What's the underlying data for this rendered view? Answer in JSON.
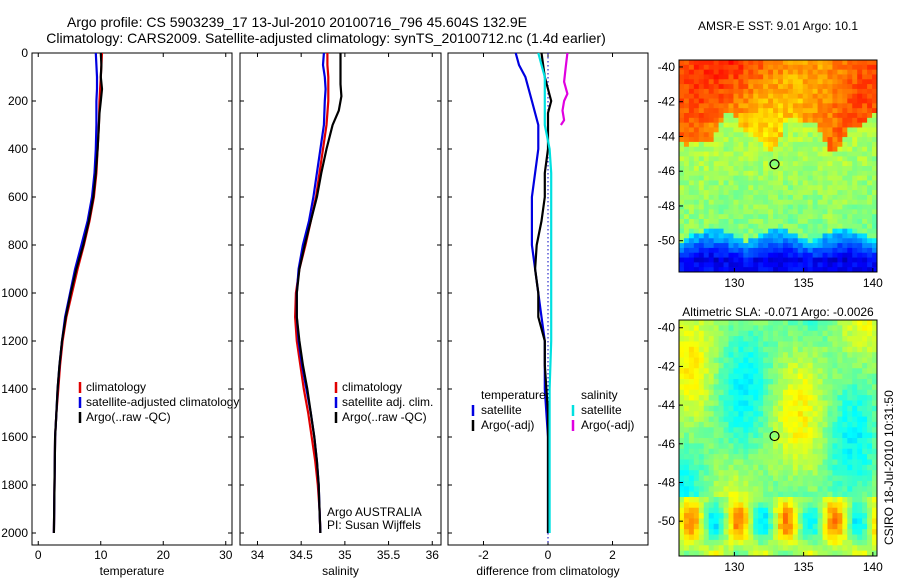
{
  "title": {
    "line1": "Argo profile: CS 5903239_17 13-Jul-2010 20100716_796 45.604S 132.9E",
    "line2": "Climatology: CARS2009. Satellite-adjusted climatology: synTS_20100712.nc (1.4d earlier)"
  },
  "side_label": "CSIRO 18-Jul-2010 10:31:50",
  "colors": {
    "red": "#e00000",
    "blue": "#0000e0",
    "black": "#000000",
    "cyan": "#00e0e0",
    "magenta": "#e000e0",
    "dotted": "#0000c0"
  },
  "chart_data": [
    {
      "type": "line",
      "id": "temperature",
      "xlabel": "temperature",
      "xlim": [
        -1,
        31
      ],
      "ylim": [
        2050,
        0
      ],
      "xticks": [
        0,
        10,
        20,
        30
      ],
      "yticks": [
        0,
        200,
        400,
        600,
        800,
        1000,
        1200,
        1400,
        1600,
        1800,
        2000
      ],
      "legend": {
        "position": "lower-right",
        "entries": [
          "climatology",
          "satellite-adjusted climatology",
          "Argo(..raw -QC)"
        ]
      },
      "series": [
        {
          "name": "climatology",
          "color": "red",
          "width": 2.2,
          "points": [
            [
              10.2,
              0
            ],
            [
              10.1,
              50
            ],
            [
              10.0,
              100
            ],
            [
              9.9,
              150
            ],
            [
              9.8,
              200
            ],
            [
              9.7,
              300
            ],
            [
              9.5,
              400
            ],
            [
              9.3,
              500
            ],
            [
              8.9,
              600
            ],
            [
              8.2,
              700
            ],
            [
              7.3,
              800
            ],
            [
              6.3,
              900
            ],
            [
              5.4,
              1000
            ],
            [
              4.5,
              1100
            ],
            [
              3.9,
              1200
            ],
            [
              3.5,
              1300
            ],
            [
              3.2,
              1400
            ],
            [
              2.9,
              1500
            ],
            [
              2.7,
              1600
            ],
            [
              2.6,
              1800
            ],
            [
              2.5,
              2000
            ]
          ]
        },
        {
          "name": "satellite-adjusted climatology",
          "color": "blue",
          "width": 2.2,
          "points": [
            [
              9.2,
              0
            ],
            [
              9.3,
              50
            ],
            [
              9.4,
              100
            ],
            [
              9.4,
              150
            ],
            [
              9.3,
              200
            ],
            [
              9.3,
              300
            ],
            [
              9.2,
              400
            ],
            [
              9.0,
              500
            ],
            [
              8.6,
              600
            ],
            [
              7.9,
              700
            ],
            [
              6.9,
              800
            ],
            [
              5.9,
              900
            ],
            [
              5.1,
              1000
            ],
            [
              4.3,
              1100
            ],
            [
              3.8,
              1200
            ],
            [
              3.4,
              1300
            ],
            [
              3.1,
              1400
            ],
            [
              2.9,
              1500
            ],
            [
              2.7,
              1600
            ],
            [
              2.6,
              1800
            ],
            [
              2.5,
              2000
            ]
          ]
        },
        {
          "name": "Argo(..raw -QC)",
          "color": "black",
          "width": 2.2,
          "points": [
            [
              10.0,
              0
            ],
            [
              10.1,
              50
            ],
            [
              10.0,
              100
            ],
            [
              10.2,
              150
            ],
            [
              10.0,
              200
            ],
            [
              9.8,
              250
            ],
            [
              9.7,
              300
            ],
            [
              9.5,
              400
            ],
            [
              9.2,
              500
            ],
            [
              8.8,
              600
            ],
            [
              8.1,
              700
            ],
            [
              7.2,
              800
            ],
            [
              6.1,
              900
            ],
            [
              5.2,
              1000
            ],
            [
              4.4,
              1100
            ],
            [
              3.8,
              1200
            ],
            [
              3.4,
              1300
            ],
            [
              3.1,
              1400
            ],
            [
              2.9,
              1500
            ],
            [
              2.7,
              1600
            ],
            [
              2.6,
              1800
            ],
            [
              2.5,
              2000
            ]
          ]
        }
      ]
    },
    {
      "type": "line",
      "id": "salinity",
      "xlabel": "salinity",
      "xlim": [
        33.8,
        36.1
      ],
      "ylim": [
        2050,
        0
      ],
      "xticks": [
        34,
        34.5,
        35,
        35.5,
        36
      ],
      "xticklabels": [
        "34",
        "34.5",
        "35",
        "35.5",
        "36"
      ],
      "legend": {
        "position": "lower-right",
        "entries": [
          "climatology",
          "satellite adj. clim.",
          "Argo(..raw -QC)"
        ]
      },
      "annotation": [
        "Argo AUSTRALIA",
        "PI: Susan Wijffels"
      ],
      "series": [
        {
          "name": "climatology",
          "color": "red",
          "width": 2.2,
          "points": [
            [
              34.8,
              0
            ],
            [
              34.8,
              50
            ],
            [
              34.81,
              100
            ],
            [
              34.81,
              200
            ],
            [
              34.79,
              300
            ],
            [
              34.75,
              400
            ],
            [
              34.71,
              500
            ],
            [
              34.67,
              600
            ],
            [
              34.61,
              700
            ],
            [
              34.55,
              800
            ],
            [
              34.48,
              900
            ],
            [
              34.44,
              1000
            ],
            [
              34.43,
              1100
            ],
            [
              34.45,
              1200
            ],
            [
              34.49,
              1300
            ],
            [
              34.53,
              1400
            ],
            [
              34.58,
              1500
            ],
            [
              34.62,
              1600
            ],
            [
              34.66,
              1700
            ],
            [
              34.69,
              1800
            ],
            [
              34.71,
              1900
            ],
            [
              34.72,
              2000
            ]
          ]
        },
        {
          "name": "satellite adj. clim.",
          "color": "blue",
          "width": 2.2,
          "points": [
            [
              34.76,
              0
            ],
            [
              34.75,
              50
            ],
            [
              34.77,
              100
            ],
            [
              34.78,
              150
            ],
            [
              34.77,
              200
            ],
            [
              34.76,
              300
            ],
            [
              34.72,
              400
            ],
            [
              34.68,
              500
            ],
            [
              34.64,
              600
            ],
            [
              34.59,
              700
            ],
            [
              34.52,
              800
            ],
            [
              34.47,
              900
            ],
            [
              34.45,
              1000
            ],
            [
              34.45,
              1100
            ],
            [
              34.47,
              1200
            ],
            [
              34.51,
              1300
            ],
            [
              34.56,
              1400
            ],
            [
              34.61,
              1500
            ],
            [
              34.65,
              1600
            ],
            [
              34.68,
              1700
            ],
            [
              34.7,
              1800
            ],
            [
              34.71,
              1900
            ],
            [
              34.72,
              2000
            ]
          ]
        },
        {
          "name": "Argo(..raw -QC)",
          "color": "black",
          "width": 2.2,
          "points": [
            [
              34.95,
              0
            ],
            [
              34.95,
              60
            ],
            [
              34.95,
              130
            ],
            [
              34.96,
              180
            ],
            [
              34.93,
              240
            ],
            [
              34.86,
              300
            ],
            [
              34.79,
              400
            ],
            [
              34.73,
              500
            ],
            [
              34.68,
              600
            ],
            [
              34.61,
              700
            ],
            [
              34.54,
              800
            ],
            [
              34.48,
              900
            ],
            [
              34.45,
              1000
            ],
            [
              34.45,
              1100
            ],
            [
              34.48,
              1200
            ],
            [
              34.52,
              1300
            ],
            [
              34.57,
              1400
            ],
            [
              34.61,
              1500
            ],
            [
              34.65,
              1600
            ],
            [
              34.68,
              1700
            ],
            [
              34.7,
              1800
            ],
            [
              34.71,
              1900
            ],
            [
              34.72,
              2000
            ]
          ]
        }
      ]
    },
    {
      "type": "line",
      "id": "difference",
      "xlabel": "difference from climatology",
      "xlim": [
        -3.1,
        3.1
      ],
      "ylim": [
        2050,
        0
      ],
      "xticks": [
        -2,
        0,
        2
      ],
      "legend": {
        "position": "lower-center",
        "col1_header": "temperature",
        "col2_header": "salinity",
        "entries": [
          "satellite",
          "Argo(-adj)",
          "satellite",
          "Argo(-adj)"
        ]
      },
      "series": [
        {
          "name": "temperature satellite",
          "color": "blue",
          "width": 2.2,
          "points": [
            [
              -1.0,
              0
            ],
            [
              -0.9,
              50
            ],
            [
              -0.7,
              100
            ],
            [
              -0.5,
              200
            ],
            [
              -0.3,
              300
            ],
            [
              -0.3,
              400
            ],
            [
              -0.4,
              500
            ],
            [
              -0.5,
              600
            ],
            [
              -0.5,
              700
            ],
            [
              -0.5,
              800
            ],
            [
              -0.4,
              900
            ],
            [
              -0.3,
              1000
            ],
            [
              -0.2,
              1100
            ],
            [
              -0.1,
              1200
            ],
            [
              -0.1,
              1300
            ],
            [
              -0.1,
              1400
            ],
            [
              -0.05,
              1500
            ],
            [
              0,
              1600
            ],
            [
              0,
              1800
            ],
            [
              0,
              2000
            ]
          ]
        },
        {
          "name": "temperature Argo(-adj)",
          "color": "black",
          "width": 2.2,
          "points": [
            [
              -0.2,
              0
            ],
            [
              -0.1,
              100
            ],
            [
              0,
              150
            ],
            [
              0.1,
              200
            ],
            [
              0,
              250
            ],
            [
              0,
              300
            ],
            [
              0,
              400
            ],
            [
              -0.1,
              500
            ],
            [
              -0.1,
              600
            ],
            [
              -0.2,
              700
            ],
            [
              -0.35,
              800
            ],
            [
              -0.4,
              900
            ],
            [
              -0.3,
              1000
            ],
            [
              -0.3,
              1100
            ],
            [
              -0.1,
              1200
            ],
            [
              -0.1,
              1300
            ],
            [
              -0.05,
              1400
            ],
            [
              0,
              1500
            ],
            [
              0,
              1700
            ],
            [
              0,
              2000
            ]
          ]
        },
        {
          "name": "salinity satellite",
          "color": "cyan",
          "width": 2.2,
          "points": [
            [
              -0.3,
              0
            ],
            [
              -0.2,
              50
            ],
            [
              -0.1,
              100
            ],
            [
              -0.1,
              200
            ],
            [
              -0.1,
              300
            ],
            [
              0.05,
              400
            ],
            [
              0.1,
              500
            ],
            [
              0.1,
              600
            ],
            [
              0.1,
              700
            ],
            [
              0.1,
              900
            ],
            [
              0.1,
              1000
            ],
            [
              0.1,
              1200
            ],
            [
              0.05,
              1400
            ],
            [
              0.05,
              1600
            ],
            [
              0.05,
              1800
            ],
            [
              0.05,
              2000
            ]
          ]
        },
        {
          "name": "salinity Argo(-adj)",
          "color": "magenta",
          "width": 2.2,
          "points": [
            [
              0.6,
              0
            ],
            [
              0.55,
              60
            ],
            [
              0.5,
              120
            ],
            [
              0.6,
              170
            ],
            [
              0.5,
              200
            ],
            [
              0.45,
              240
            ],
            [
              0.5,
              280
            ],
            [
              0.4,
              300
            ]
          ]
        }
      ]
    },
    {
      "type": "heatmap",
      "id": "sst",
      "title": "AMSR-E SST: 9.01  Argo: 10.1",
      "xlim": [
        126,
        140.3
      ],
      "ylim": [
        -51.8,
        -39.6
      ],
      "xticks": [
        130,
        135,
        140
      ],
      "yticks": [
        -40,
        -42,
        -44,
        -46,
        -48,
        -50
      ],
      "marker": {
        "lon": 132.9,
        "lat": -45.6
      }
    },
    {
      "type": "heatmap",
      "id": "sla",
      "title": "Altimetric SLA: -0.071  Argo: -0.0026",
      "xlim": [
        126,
        140.3
      ],
      "ylim": [
        -51.8,
        -39.6
      ],
      "xticks": [
        130,
        135,
        140
      ],
      "yticks": [
        -40,
        -42,
        -44,
        -46,
        -48,
        -50
      ],
      "marker": {
        "lon": 132.9,
        "lat": -45.6
      }
    }
  ]
}
